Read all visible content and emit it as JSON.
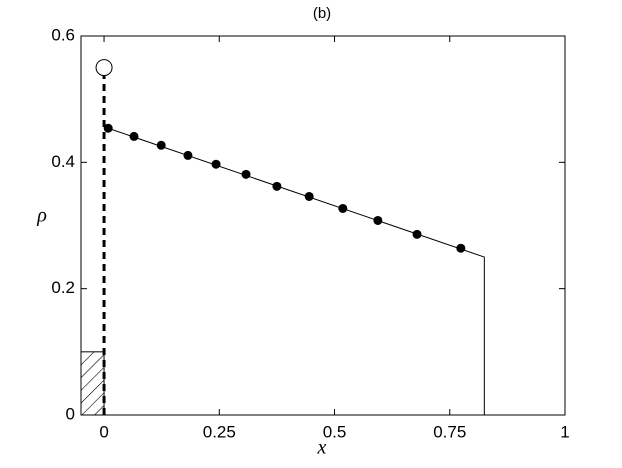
{
  "chart_data": {
    "type": "line",
    "title": "(b)",
    "x_label": "x",
    "y_label": "ρ",
    "xlim": [
      -0.05,
      1
    ],
    "ylim": [
      0,
      0.6
    ],
    "xticks": [
      0,
      0.25,
      0.5,
      0.75,
      1
    ],
    "yticks": [
      0,
      0.2,
      0.4,
      0.6
    ],
    "color": "#000000",
    "line": {
      "x": [
        0.005,
        0.825,
        0.825
      ],
      "y": [
        0.455,
        0.25,
        0
      ]
    },
    "points": {
      "x": [
        0.009,
        0.065,
        0.124,
        0.182,
        0.243,
        0.308,
        0.375,
        0.445,
        0.518,
        0.594,
        0.679,
        0.774
      ],
      "y": [
        0.454,
        0.441,
        0.427,
        0.411,
        0.397,
        0.381,
        0.362,
        0.346,
        0.327,
        0.308,
        0.286,
        0.264
      ]
    },
    "open_point": {
      "x": 0,
      "y": 0.55
    },
    "dashed_line": {
      "x": [
        0,
        0
      ],
      "y": [
        0,
        0.55
      ]
    },
    "hatched_region": {
      "x": [
        -0.05,
        0
      ],
      "y": [
        0,
        0.1
      ]
    }
  }
}
